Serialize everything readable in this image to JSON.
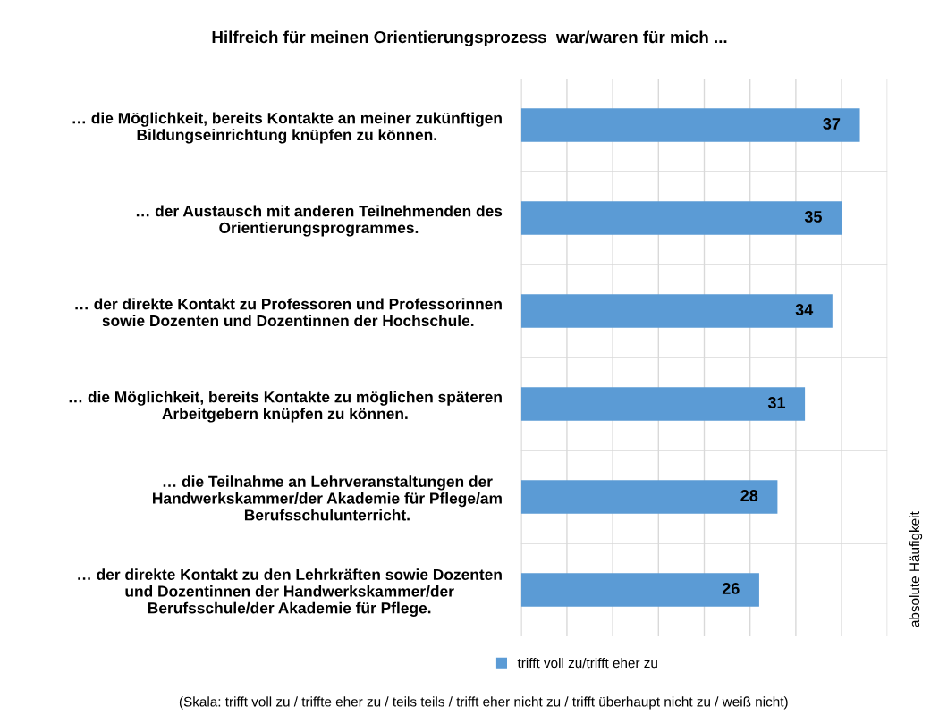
{
  "chart_data": {
    "type": "bar",
    "orientation": "horizontal",
    "title": "Hilfreich für meinen Orientierungsprozess  war/waren für mich ...",
    "categories": [
      "… die Möglichkeit, bereits Kontakte an meiner zukünftigen\nBildungseinrichtung knüpfen zu können.",
      "… der Austausch mit anderen Teilnehmenden des\nOrientierungsprogrammes.",
      "… der direkte Kontakt zu Professoren und Professorinnen\nsowie Dozenten und Dozentinnen der Hochschule.",
      "… die Möglichkeit, bereits Kontakte zu möglichen späteren\nArbeitgebern knüpfen zu können.",
      "… die Teilnahme an Lehrveranstaltungen der\nHandwerkskammer/der Akademie für Pflege/am\nBerufsschulunterricht.",
      "… der direkte Kontakt zu den Lehrkräften sowie Dozenten\nund Dozentinnen der Handwerkskammer/der\nBerufsschule/der Akademie für Pflege."
    ],
    "series": [
      {
        "name": "trifft voll zu/trifft eher zu",
        "color": "#5b9bd5",
        "values": [
          37,
          35,
          34,
          31,
          28,
          26
        ]
      }
    ],
    "xlim": [
      0,
      40
    ],
    "xticks": [
      {
        "value": 0,
        "label": null
      },
      {
        "value": 5,
        "label": null
      },
      {
        "value": 10,
        "label": null
      },
      {
        "value": 15,
        "label": null
      },
      {
        "value": 20,
        "label": null
      },
      {
        "value": 25,
        "label": null
      },
      {
        "value": 30,
        "label": null
      },
      {
        "value": 35,
        "label": null
      },
      {
        "value": 40,
        "label": null
      }
    ],
    "y2label": "absolute Häufigkeit",
    "data_labels": true,
    "grid": true,
    "legend": "bottom",
    "annotations": [
      "(Skala: trifft voll zu / triffte eher zu / teils teils / trifft eher nicht zu / trifft überhaupt nicht zu / weiß nicht)"
    ]
  }
}
